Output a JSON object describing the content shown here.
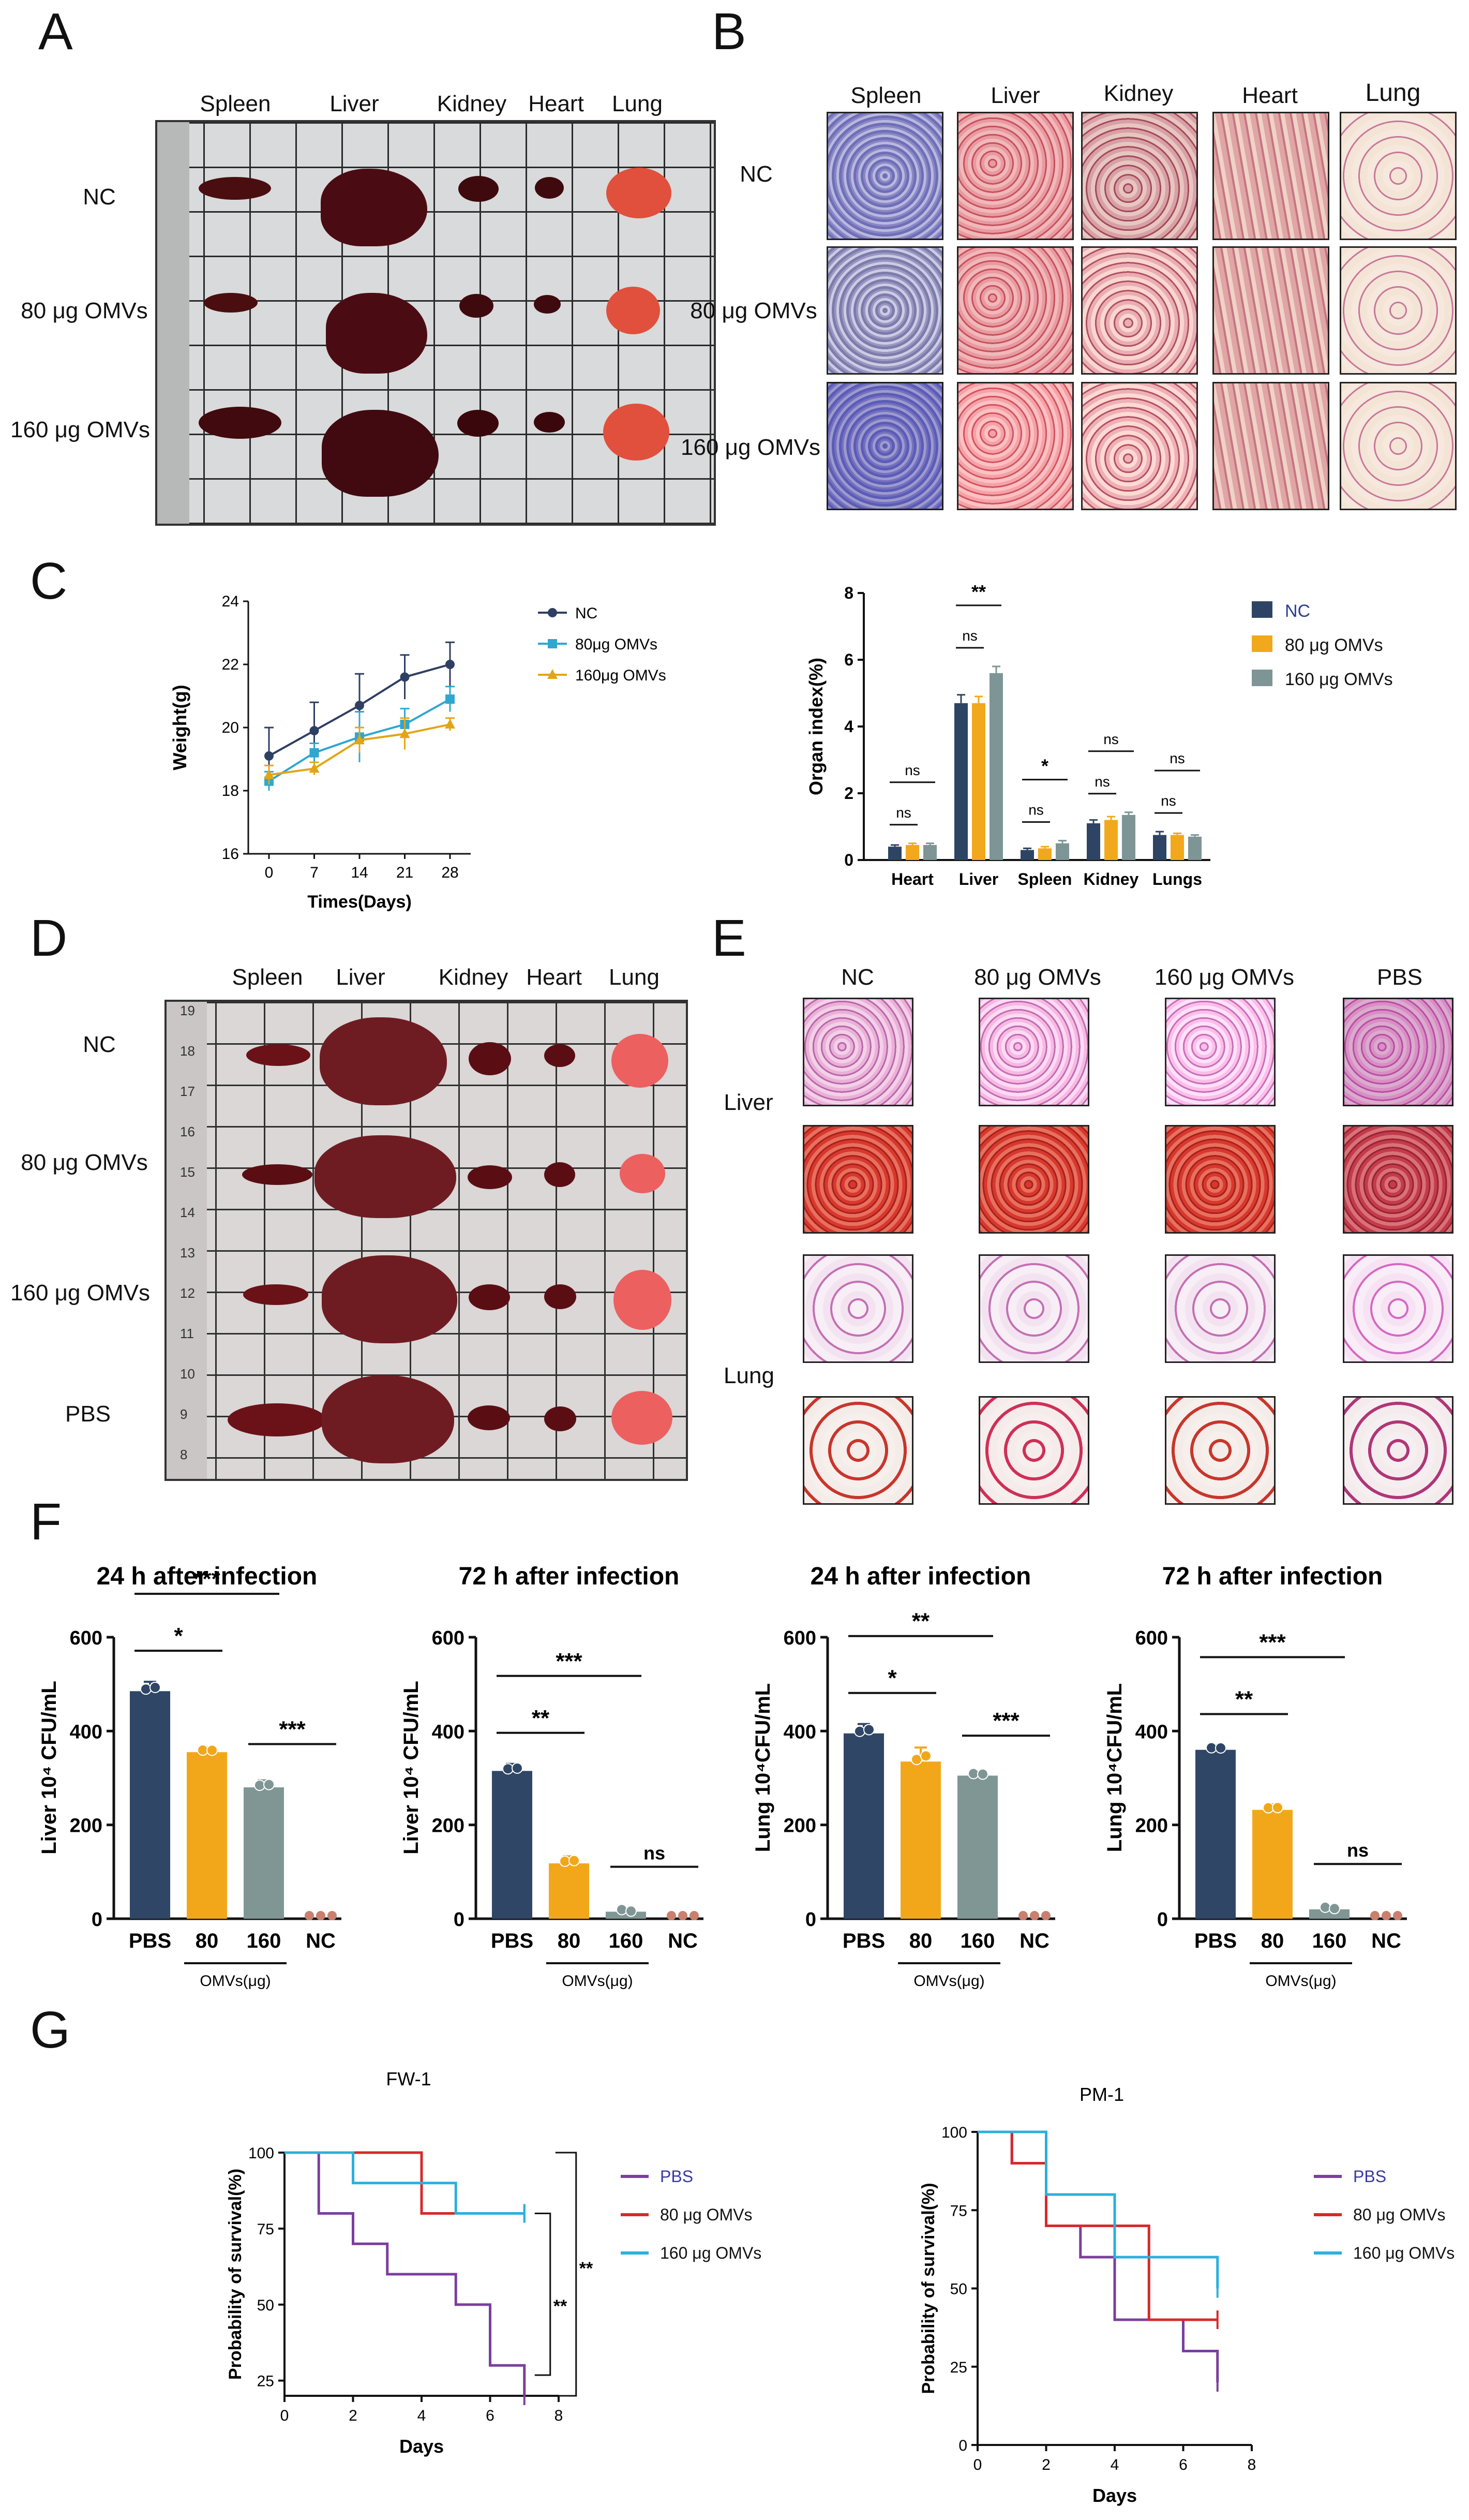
{
  "panels": {
    "A": {
      "label": "A",
      "organs": [
        "Spleen",
        "Liver",
        "Kidney",
        "Heart",
        "Lung"
      ],
      "groups": [
        "NC",
        "80 μg OMVs",
        "160 μg OMVs"
      ]
    },
    "B": {
      "label": "B",
      "organs": [
        "Spleen",
        "Liver",
        "Kidney",
        "Heart",
        "Lung"
      ],
      "groups": [
        "NC",
        "80 μg OMVs",
        "160 μg OMVs"
      ]
    },
    "C": {
      "label": "C"
    },
    "D": {
      "label": "D",
      "organs": [
        "Spleen",
        "Liver",
        "Kidney",
        "Heart",
        "Lung"
      ],
      "groups": [
        "NC",
        "80 μg OMVs",
        "160 μg OMVs",
        "PBS"
      ],
      "ruler_ticks": [
        "19",
        "18",
        "17",
        "16",
        "15",
        "14",
        "13",
        "12",
        "11",
        "10",
        "9",
        "8"
      ]
    },
    "E": {
      "label": "E",
      "columns": [
        "NC",
        "80 μg OMVs",
        "160 μg OMVs",
        "PBS"
      ],
      "rows": [
        "Liver",
        "Lung"
      ]
    },
    "F": {
      "label": "F"
    },
    "G": {
      "label": "G"
    }
  },
  "chart_data": [
    {
      "id": "weight",
      "type": "line",
      "title": "",
      "xlabel": "Times(Days)",
      "ylabel": "Weight(g)",
      "x": [
        0,
        7,
        14,
        21,
        28
      ],
      "xticks": [
        "0",
        "7",
        "14",
        "21",
        "28"
      ],
      "yticks": [
        "16",
        "18",
        "20",
        "22",
        "24"
      ],
      "ylim": [
        16,
        24
      ],
      "legend_position": "right",
      "series": [
        {
          "name": "NC",
          "color": "#2e3f63",
          "marker": "circle",
          "values": [
            19.1,
            19.9,
            20.7,
            21.6,
            22.0
          ],
          "err": [
            0.9,
            0.9,
            1.0,
            0.7,
            0.7
          ]
        },
        {
          "name": "80μg OMVs",
          "color": "#2fa7cf",
          "marker": "square",
          "values": [
            18.3,
            19.2,
            19.7,
            20.1,
            20.9
          ],
          "err": [
            0.3,
            0.3,
            0.8,
            0.5,
            0.4
          ]
        },
        {
          "name": "160μg OMVs",
          "color": "#e3a516",
          "marker": "triangle",
          "values": [
            18.5,
            18.7,
            19.6,
            19.8,
            20.1
          ],
          "err": [
            0.3,
            0.2,
            0.4,
            0.5,
            0.2
          ]
        }
      ]
    },
    {
      "id": "organ-index",
      "type": "bar",
      "xlabel": "",
      "ylabel": "Organ index(%)",
      "categories": [
        "Heart",
        "Liver",
        "Spleen",
        "Kidney",
        "Lungs"
      ],
      "yticks": [
        "0",
        "2",
        "4",
        "6",
        "8"
      ],
      "ylim": [
        0,
        8
      ],
      "legend_position": "top-right",
      "series": [
        {
          "name": "NC",
          "color": "#2e4464",
          "values": [
            0.4,
            4.7,
            0.3,
            1.1,
            0.75
          ],
          "err": [
            0.05,
            0.25,
            0.05,
            0.1,
            0.1
          ]
        },
        {
          "name": "80 μg OMVs",
          "color": "#f2a81d",
          "values": [
            0.45,
            4.7,
            0.35,
            1.2,
            0.75
          ],
          "err": [
            0.05,
            0.2,
            0.05,
            0.1,
            0.05
          ]
        },
        {
          "name": "160 μg OMVs",
          "color": "#7e9595",
          "values": [
            0.45,
            5.6,
            0.5,
            1.35,
            0.7
          ],
          "err": [
            0.05,
            0.2,
            0.08,
            0.08,
            0.05
          ]
        }
      ],
      "annotations": [
        {
          "category": "Heart",
          "lines": [
            {
              "from": 0,
              "to": 1,
              "text": "ns"
            },
            {
              "from": 0,
              "to": 2,
              "text": "ns"
            }
          ]
        },
        {
          "category": "Liver",
          "lines": [
            {
              "from": 0,
              "to": 1,
              "text": "ns"
            },
            {
              "from": 0,
              "to": 2,
              "text": "**"
            }
          ]
        },
        {
          "category": "Spleen",
          "lines": [
            {
              "from": 0,
              "to": 1,
              "text": "ns"
            },
            {
              "from": 0,
              "to": 2,
              "text": "*"
            }
          ]
        },
        {
          "category": "Kidney",
          "lines": [
            {
              "from": 0,
              "to": 1,
              "text": "ns"
            },
            {
              "from": 0,
              "to": 2,
              "text": "ns"
            }
          ]
        },
        {
          "category": "Lungs",
          "lines": [
            {
              "from": 0,
              "to": 1,
              "text": "ns"
            },
            {
              "from": 0,
              "to": 2,
              "text": "ns"
            }
          ]
        }
      ]
    },
    {
      "id": "f1",
      "type": "bar",
      "title": "24 h after infection",
      "ylabel": "Liver 10⁴ CFU/mL",
      "categories": [
        "PBS",
        "80",
        "160",
        "NC"
      ],
      "group_label": "OMVs(μg)",
      "yticks": [
        "0",
        "200",
        "400",
        "600"
      ],
      "ylim": [
        0,
        600
      ],
      "colors": [
        "#2f4666",
        "#f2a71b",
        "#7f9695",
        "#c9806f"
      ],
      "values": [
        485,
        355,
        280,
        3
      ],
      "err": [
        20,
        10,
        15,
        1
      ],
      "significance": [
        {
          "from": 0,
          "to": 1,
          "text": "*"
        },
        {
          "from": 0,
          "to": 2,
          "text": "***"
        },
        {
          "from": 2,
          "to": 3,
          "text": "***"
        }
      ]
    },
    {
      "id": "f2",
      "type": "bar",
      "title": "72 h after infection",
      "ylabel": "Liver 10⁴ CFU/mL",
      "categories": [
        "PBS",
        "80",
        "160",
        "NC"
      ],
      "group_label": "OMVs(μg)",
      "yticks": [
        "0",
        "200",
        "400",
        "600"
      ],
      "ylim": [
        0,
        600
      ],
      "colors": [
        "#2f4666",
        "#f2a71b",
        "#7f9695",
        "#c9806f"
      ],
      "values": [
        315,
        118,
        15,
        3
      ],
      "err": [
        15,
        15,
        3,
        1
      ],
      "significance": [
        {
          "from": 0,
          "to": 1,
          "text": "**"
        },
        {
          "from": 0,
          "to": 2,
          "text": "***"
        },
        {
          "from": 2,
          "to": 3,
          "text": "ns"
        }
      ]
    },
    {
      "id": "f3",
      "type": "bar",
      "title": "24 h after infection",
      "ylabel": "Lung 10⁴CFU/mL",
      "categories": [
        "PBS",
        "80",
        "160",
        "NC"
      ],
      "group_label": "OMVs(μg)",
      "yticks": [
        "0",
        "200",
        "400",
        "600"
      ],
      "ylim": [
        0,
        600
      ],
      "colors": [
        "#2f4666",
        "#f2a71b",
        "#7f9695",
        "#c9806f"
      ],
      "values": [
        395,
        335,
        305,
        3
      ],
      "err": [
        20,
        30,
        8,
        1
      ],
      "significance": [
        {
          "from": 0,
          "to": 1,
          "text": "*"
        },
        {
          "from": 0,
          "to": 2,
          "text": "**"
        },
        {
          "from": 2,
          "to": 3,
          "text": "***"
        }
      ]
    },
    {
      "id": "f4",
      "type": "bar",
      "title": "72 h after infection",
      "ylabel": "Lung 10⁴CFU/mL",
      "categories": [
        "PBS",
        "80",
        "160",
        "NC"
      ],
      "group_label": "OMVs(μg)",
      "yticks": [
        "0",
        "200",
        "400",
        "600"
      ],
      "ylim": [
        0,
        600
      ],
      "colors": [
        "#2f4666",
        "#f2a71b",
        "#7f9695",
        "#c9806f"
      ],
      "values": [
        360,
        232,
        20,
        3
      ],
      "err": [
        10,
        12,
        4,
        1
      ],
      "significance": [
        {
          "from": 0,
          "to": 1,
          "text": "**"
        },
        {
          "from": 0,
          "to": 2,
          "text": "***"
        },
        {
          "from": 2,
          "to": 3,
          "text": "ns"
        }
      ]
    },
    {
      "id": "g1",
      "type": "line",
      "title": "FW-1",
      "xlabel": "Days",
      "ylabel": "Probability of survival(%)",
      "xticks": [
        "0",
        "2",
        "4",
        "6",
        "8"
      ],
      "yticks": [
        "25",
        "50",
        "75",
        "100"
      ],
      "xlim": [
        0,
        8
      ],
      "ylim": [
        20,
        100
      ],
      "legend_position": "right",
      "series": [
        {
          "name": "PBS",
          "color": "#7b3f9e",
          "steps": [
            [
              0,
              100
            ],
            [
              1,
              80
            ],
            [
              2,
              70
            ],
            [
              3,
              60
            ],
            [
              5,
              50
            ],
            [
              6,
              30
            ],
            [
              7,
              20
            ]
          ]
        },
        {
          "name": "80 μg OMVs",
          "color": "#d62a2a",
          "steps": [
            [
              0,
              100
            ],
            [
              2,
              100
            ],
            [
              4,
              80
            ],
            [
              7,
              80
            ]
          ]
        },
        {
          "name": "160 μg OMVs",
          "color": "#2bb0dd",
          "steps": [
            [
              0,
              100
            ],
            [
              2,
              90
            ],
            [
              5,
              80
            ],
            [
              7,
              80
            ]
          ]
        }
      ],
      "significance": [
        "**",
        "**"
      ]
    },
    {
      "id": "g2",
      "type": "line",
      "title": "PM-1",
      "xlabel": "Days",
      "ylabel": "Probability of survival(%)",
      "xticks": [
        "0",
        "2",
        "4",
        "6",
        "8"
      ],
      "yticks": [
        "0",
        "25",
        "50",
        "75",
        "100"
      ],
      "xlim": [
        0,
        8
      ],
      "ylim": [
        0,
        100
      ],
      "legend_position": "right",
      "series": [
        {
          "name": "PBS",
          "color": "#7b3f9e",
          "steps": [
            [
              0,
              100
            ],
            [
              1,
              90
            ],
            [
              2,
              70
            ],
            [
              3,
              60
            ],
            [
              4,
              40
            ],
            [
              6,
              30
            ],
            [
              7,
              20
            ]
          ]
        },
        {
          "name": "80 μg OMVs",
          "color": "#d62a2a",
          "steps": [
            [
              0,
              100
            ],
            [
              1,
              90
            ],
            [
              2,
              70
            ],
            [
              4,
              70
            ],
            [
              5,
              40
            ],
            [
              7,
              40
            ]
          ]
        },
        {
          "name": "160 μg OMVs",
          "color": "#2bb0dd",
          "steps": [
            [
              0,
              100
            ],
            [
              2,
              80
            ],
            [
              4,
              60
            ],
            [
              7,
              50
            ]
          ]
        }
      ]
    }
  ]
}
